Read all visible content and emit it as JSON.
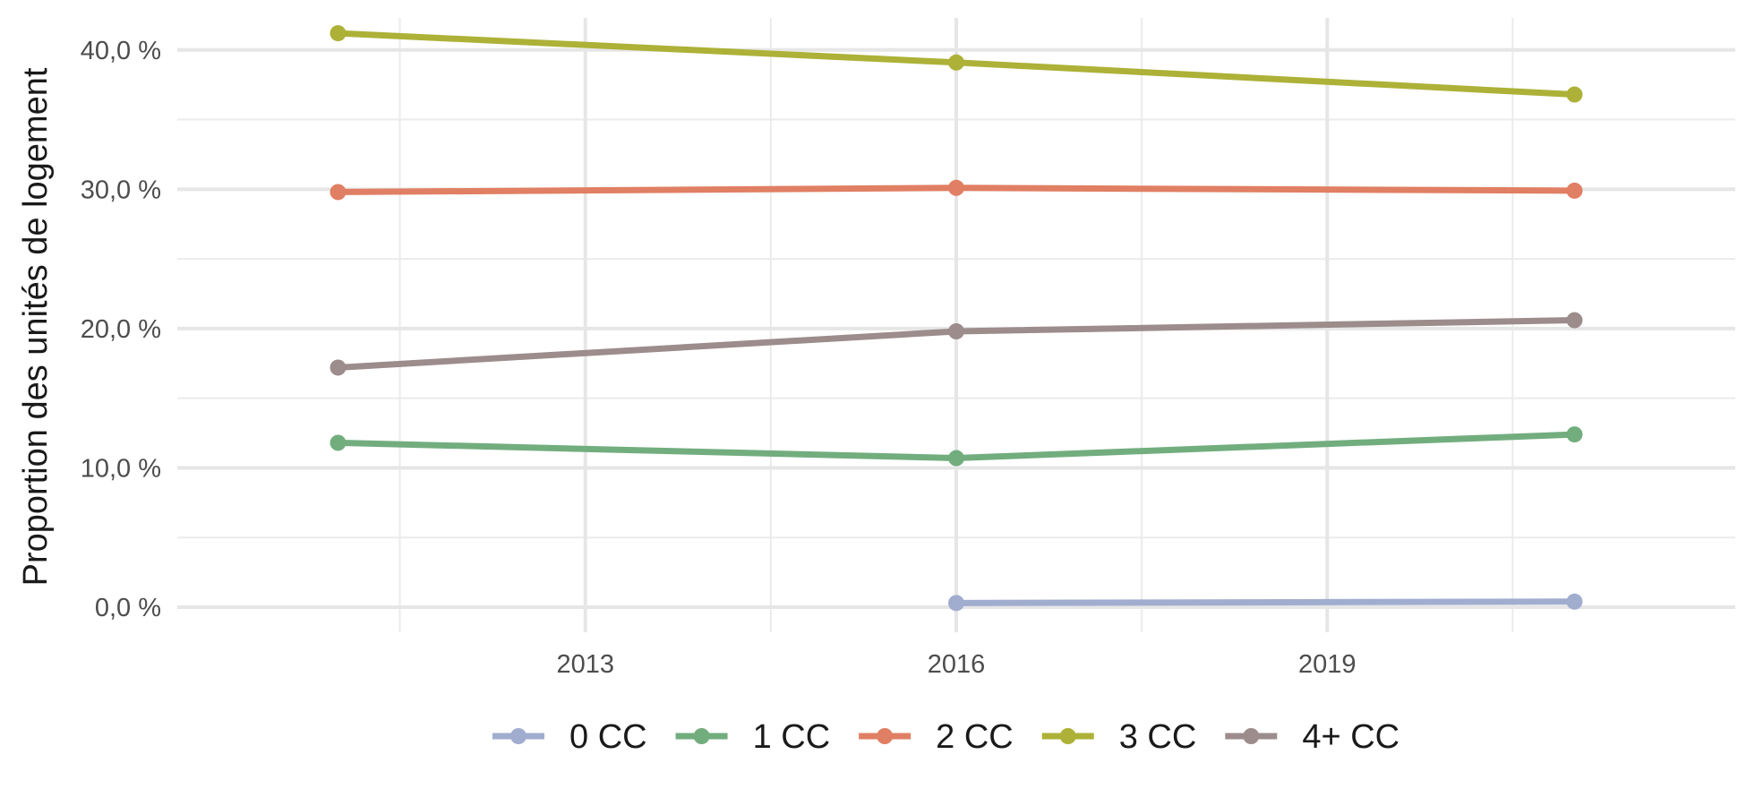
{
  "chart_data": {
    "type": "line",
    "title": "",
    "xlabel": "",
    "ylabel": "Proportion des unités de logement",
    "xlim": [
      2009.7,
      2022.3
    ],
    "ylim": [
      -1.8,
      42.3
    ],
    "x_ticks": [
      2013,
      2016,
      2019
    ],
    "x_tick_labels": [
      "2013",
      "2016",
      "2019"
    ],
    "y_ticks": [
      0,
      10,
      20,
      30,
      40
    ],
    "y_tick_labels": [
      "0,0 %",
      "10,0 %",
      "20,0 %",
      "30,0 %",
      "40,0 %"
    ],
    "grid": true,
    "legend_position": "bottom",
    "series": [
      {
        "name": "0 CC",
        "color": "#a1adcf",
        "x": [
          2016,
          2021
        ],
        "values": [
          0.3,
          0.4
        ]
      },
      {
        "name": "1 CC",
        "color": "#72ad7e",
        "x": [
          2011,
          2016,
          2021
        ],
        "values": [
          11.8,
          10.7,
          12.4
        ]
      },
      {
        "name": "2 CC",
        "color": "#e07f63",
        "x": [
          2011,
          2016,
          2021
        ],
        "values": [
          29.8,
          30.1,
          29.9
        ]
      },
      {
        "name": "3 CC",
        "color": "#adb137",
        "x": [
          2011,
          2016,
          2021
        ],
        "values": [
          41.2,
          39.1,
          36.8
        ]
      },
      {
        "name": "4+ CC",
        "color": "#9d8c8c",
        "x": [
          2011,
          2016,
          2021
        ],
        "values": [
          17.2,
          19.8,
          20.6
        ]
      }
    ]
  }
}
